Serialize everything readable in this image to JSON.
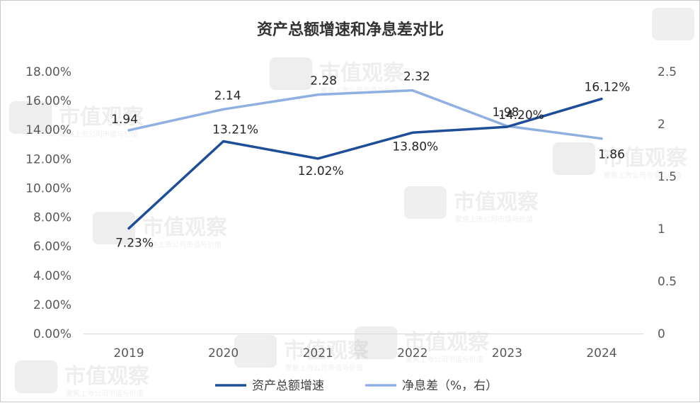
{
  "chart_data": {
    "type": "line",
    "title": "资产总额增速和净息差对比",
    "categories": [
      "2019",
      "2020",
      "2021",
      "2022",
      "2023",
      "2024"
    ],
    "left_axis": {
      "min": 0,
      "max": 18,
      "step": 2,
      "ticks": [
        "0.00%",
        "2.00%",
        "4.00%",
        "6.00%",
        "8.00%",
        "10.00%",
        "12.00%",
        "14.00%",
        "16.00%",
        "18.00%"
      ]
    },
    "right_axis": {
      "min": 0,
      "max": 2.5,
      "step": 0.5,
      "ticks": [
        "0",
        "0.5",
        "1",
        "1.5",
        "2",
        "2.5"
      ]
    },
    "series": [
      {
        "name": "资产总额增速",
        "axis": "left",
        "color": "#1f4e99",
        "values": [
          7.23,
          13.21,
          12.02,
          13.8,
          14.2,
          16.12
        ],
        "labels": [
          "7.23%",
          "13.21%",
          "12.02%",
          "13.80%",
          "14.20%",
          "16.12%"
        ]
      },
      {
        "name": "净息差（%，右）",
        "axis": "right",
        "color": "#8fb0e0",
        "values": [
          1.94,
          2.14,
          2.28,
          2.32,
          1.98,
          1.86
        ],
        "labels": [
          "1.94",
          "2.14",
          "2.28",
          "2.32",
          "1.98",
          "1.86"
        ]
      }
    ],
    "legend": "bottom",
    "grid": false
  },
  "watermark": {
    "brand": "市值观察",
    "tagline": "聚焦上市公司市值与价值"
  }
}
